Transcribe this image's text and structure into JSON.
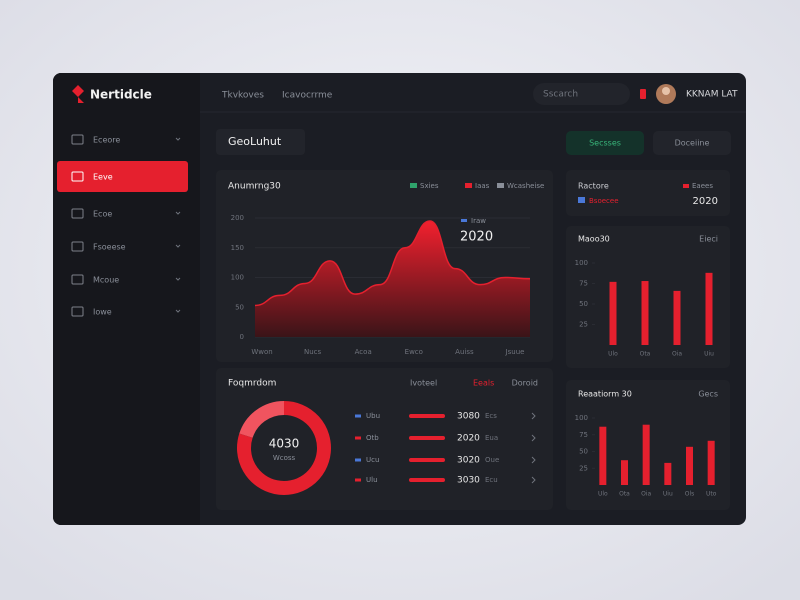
{
  "brand": "Nertidcle",
  "nav": [
    "Tkvkoves",
    "Icavocrrme"
  ],
  "search": "Sscarch",
  "user": "KKNAM LAT",
  "sidebar": {
    "active": 1,
    "items": [
      "Eceore",
      "Eeve",
      "Ecoe",
      "Fsoeese",
      "Mcoue",
      "Iowe"
    ]
  },
  "page_title": "GeoLuhut",
  "buttons": [
    "Secsses",
    "Doceiine"
  ],
  "area_chart": {
    "title": "Anumrng30",
    "legend": [
      {
        "name": "Sxies",
        "color": "#2fa36b"
      },
      {
        "name": "Iaas",
        "color": "#e5202e"
      },
      {
        "name": "Wcasheise",
        "color": "#8a8f99"
      }
    ],
    "annotation_label": "Iraw",
    "annotation": "2020",
    "categories": [
      "Wwon",
      "Nucs",
      "Acoa",
      "Ewco",
      "Auiss",
      "Jsuue"
    ],
    "ylim": [
      0,
      200
    ],
    "yticks": [
      0,
      50,
      100,
      150,
      200
    ],
    "values": [
      53,
      70,
      90,
      128,
      72,
      88,
      150,
      195,
      115,
      88,
      100,
      98
    ],
    "color": "#e5202e"
  },
  "stats": {
    "title": "Ractore",
    "legend": "Eaees",
    "label": "Bsoecee",
    "value": 2020
  },
  "bars1": {
    "title": "Maoo30",
    "action": "Eieci",
    "categories": [
      "Ulo",
      "Ota",
      "Oia",
      "Uiu"
    ],
    "ylim": [
      0,
      100
    ],
    "yticks": [
      25,
      50,
      75,
      100
    ],
    "values": [
      77,
      78,
      66,
      88
    ],
    "color": "#e5202e"
  },
  "bars2": {
    "title": "Reaatiorm 30",
    "action": "Gecs",
    "categories": [
      "Ulo",
      "Ota",
      "Oia",
      "Uiu",
      "Ols",
      "Uto"
    ],
    "ylim": [
      0,
      100
    ],
    "yticks": [
      25,
      50,
      75,
      100
    ],
    "values": [
      87,
      37,
      90,
      33,
      57,
      66
    ],
    "color": "#e5202e"
  },
  "donut": {
    "title": "Foqmrdom",
    "center_value": 4030,
    "center_label": "Wcoss",
    "values": [
      80,
      20
    ],
    "colors": [
      "#e5202e",
      "#f0545f"
    ]
  },
  "table": {
    "header": [
      "Ivoteel",
      "Eeals",
      "Doroid"
    ],
    "rows": [
      {
        "label": "Ubu",
        "value": 3080,
        "sub": "Ecs"
      },
      {
        "label": "Otb",
        "value": 2020,
        "sub": "Eua"
      },
      {
        "label": "Ucu",
        "value": 3020,
        "sub": "Oue"
      },
      {
        "label": "Ulu",
        "value": 3030,
        "sub": "Ecu"
      }
    ]
  }
}
